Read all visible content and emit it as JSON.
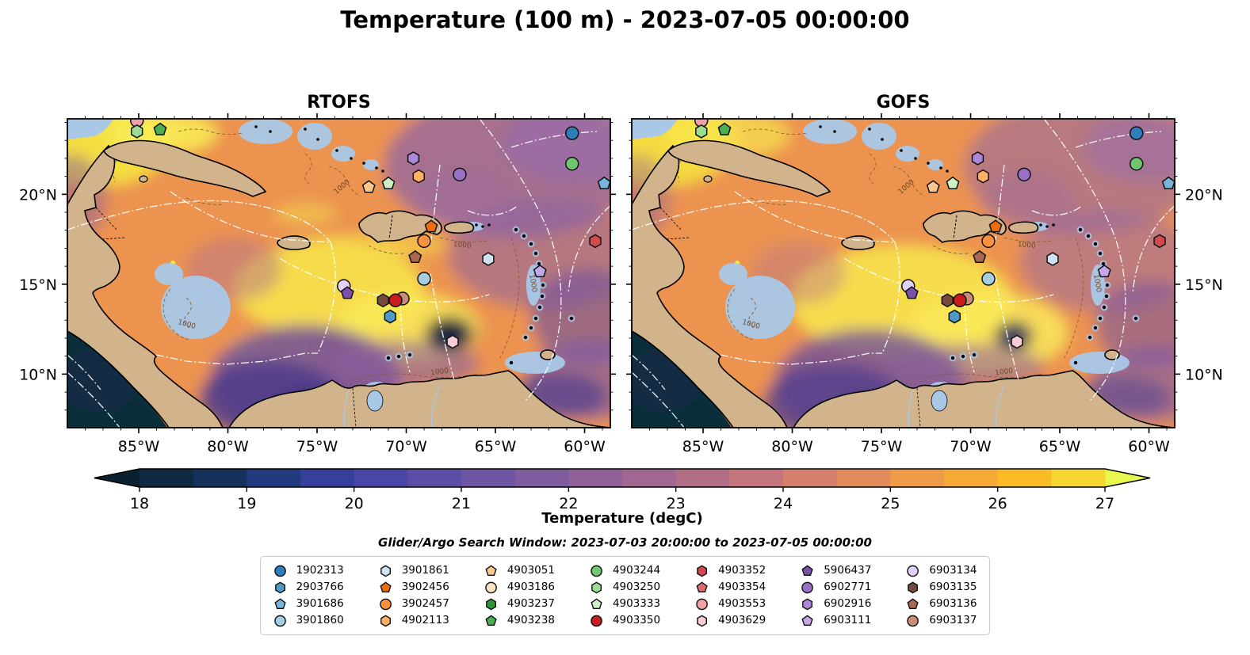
{
  "figure": {
    "title": "Temperature (100 m) - 2023-07-05 00:00:00",
    "subtitle": "Glider/Argo Search Window: 2023-07-03 20:00:00 to 2023-07-05 00:00:00"
  },
  "chart_data": {
    "type": "heatmap",
    "title": "Temperature (100 m) - 2023-07-05 00:00:00",
    "panels": [
      {
        "title": "RTOFS",
        "show_left_labels": true,
        "show_right_labels": false
      },
      {
        "title": "GOFS",
        "show_left_labels": false,
        "show_right_labels": true
      }
    ],
    "extent": {
      "lon_w": [
        89.0,
        58.5
      ],
      "lat_n": [
        7.0,
        24.2
      ]
    },
    "lon_ticks": {
      "major_deg_w": [
        85,
        80,
        75,
        70,
        65,
        60
      ],
      "labels": [
        "85°W",
        "80°W",
        "75°W",
        "70°W",
        "65°W",
        "60°W"
      ]
    },
    "lat_ticks": {
      "major_deg_n": [
        20,
        15,
        10
      ],
      "labels": [
        "20°N",
        "15°N",
        "10°N"
      ]
    },
    "colorbar": {
      "label": "Temperature (degC)",
      "min": 18,
      "max": 27,
      "step": 0.5,
      "tick_labels": [
        "18",
        "19",
        "20",
        "21",
        "22",
        "23",
        "24",
        "25",
        "26",
        "27"
      ],
      "segment_colors": [
        "#0e2a40",
        "#16315c",
        "#21397e",
        "#35409c",
        "#4946a7",
        "#5c4ea6",
        "#6e55a3",
        "#7f5b9f",
        "#906199",
        "#a16791",
        "#b36e87",
        "#c4767c",
        "#d4806d",
        "#e28b5b",
        "#ee9a47",
        "#f6aa33",
        "#fbbb24",
        "#f8d631"
      ],
      "under_color": "#0a222f",
      "over_color": "#e9f84e"
    },
    "contour_label": "1000",
    "map_colors": {
      "land": "#d2b48c",
      "shallow_water": "#a9c8e8",
      "coastline": "#000000",
      "boundary_lines": "#ffffff",
      "isobath": "#7d5a30"
    },
    "floats": [
      {
        "id": "1902313",
        "shape": "circle",
        "color": "#2e7ebc"
      },
      {
        "id": "2903766",
        "shape": "hexagon",
        "color": "#4e9bc8"
      },
      {
        "id": "3901686",
        "shape": "pentagon",
        "color": "#77b5da"
      },
      {
        "id": "3901860",
        "shape": "circle",
        "color": "#a6cee3"
      },
      {
        "id": "3901861",
        "shape": "hexagon",
        "color": "#d0e1f2"
      },
      {
        "id": "3902456",
        "shape": "pentagon",
        "color": "#ed6c0c"
      },
      {
        "id": "3902457",
        "shape": "circle",
        "color": "#fd9140"
      },
      {
        "id": "4902113",
        "shape": "hexagon",
        "color": "#fdb164"
      },
      {
        "id": "4903051",
        "shape": "pentagon",
        "color": "#fdc88e"
      },
      {
        "id": "4903186",
        "shape": "circle",
        "color": "#fde2c0"
      },
      {
        "id": "4903237",
        "shape": "hexagon",
        "color": "#2f9636"
      },
      {
        "id": "4903238",
        "shape": "pentagon",
        "color": "#4bae50"
      },
      {
        "id": "4903244",
        "shape": "circle",
        "color": "#70c86e"
      },
      {
        "id": "4903250",
        "shape": "hexagon",
        "color": "#9cdd95"
      },
      {
        "id": "4903333",
        "shape": "pentagon",
        "color": "#cdf0c5"
      },
      {
        "id": "4903350",
        "shape": "circle",
        "color": "#ca1c1f"
      },
      {
        "id": "4903352",
        "shape": "hexagon",
        "color": "#d04a50"
      },
      {
        "id": "4903354",
        "shape": "pentagon",
        "color": "#e0696f"
      },
      {
        "id": "4903553",
        "shape": "circle",
        "color": "#efa0a8"
      },
      {
        "id": "4903629",
        "shape": "hexagon",
        "color": "#f8ccd4"
      },
      {
        "id": "5906437",
        "shape": "pentagon",
        "color": "#7b51a8"
      },
      {
        "id": "6902771",
        "shape": "circle",
        "color": "#9a70c7"
      },
      {
        "id": "6902916",
        "shape": "hexagon",
        "color": "#ad87d9"
      },
      {
        "id": "6903111",
        "shape": "pentagon",
        "color": "#c4a6e9"
      },
      {
        "id": "6903134",
        "shape": "circle",
        "color": "#e2d1f6"
      },
      {
        "id": "6903135",
        "shape": "hexagon",
        "color": "#774a3c"
      },
      {
        "id": "6903136",
        "shape": "pentagon",
        "color": "#a76951"
      },
      {
        "id": "6903137",
        "shape": "circle",
        "color": "#c98e7b"
      }
    ],
    "observations": [
      {
        "id": "4903553",
        "lon_w": 85.1,
        "lat_n": 24.1
      },
      {
        "id": "4903250",
        "lon_w": 85.1,
        "lat_n": 23.5
      },
      {
        "id": "4903238",
        "lon_w": 83.8,
        "lat_n": 23.6
      },
      {
        "id": "1902313",
        "lon_w": 60.7,
        "lat_n": 23.4
      },
      {
        "id": "4903244",
        "lon_w": 60.7,
        "lat_n": 21.7
      },
      {
        "id": "3901686",
        "lon_w": 58.9,
        "lat_n": 20.6
      },
      {
        "id": "6902916",
        "lon_w": 69.6,
        "lat_n": 22.0
      },
      {
        "id": "6902771",
        "lon_w": 67.0,
        "lat_n": 21.1
      },
      {
        "id": "4902113",
        "lon_w": 69.3,
        "lat_n": 21.0
      },
      {
        "id": "4903333",
        "lon_w": 71.0,
        "lat_n": 20.6
      },
      {
        "id": "4903051",
        "lon_w": 72.1,
        "lat_n": 20.4
      },
      {
        "id": "3902456",
        "lon_w": 68.6,
        "lat_n": 18.2
      },
      {
        "id": "4903352",
        "lon_w": 59.4,
        "lat_n": 17.4
      },
      {
        "id": "3902457",
        "lon_w": 69.0,
        "lat_n": 17.4
      },
      {
        "id": "6903136",
        "lon_w": 69.5,
        "lat_n": 16.5
      },
      {
        "id": "3901861",
        "lon_w": 65.4,
        "lat_n": 16.4
      },
      {
        "id": "6903111",
        "lon_w": 62.5,
        "lat_n": 15.7
      },
      {
        "id": "3901860",
        "lon_w": 69.0,
        "lat_n": 15.3
      },
      {
        "id": "6903134",
        "lon_w": 73.5,
        "lat_n": 14.9
      },
      {
        "id": "5906437",
        "lon_w": 73.3,
        "lat_n": 14.5
      },
      {
        "id": "6903135",
        "lon_w": 71.3,
        "lat_n": 14.1
      },
      {
        "id": "6903137",
        "lon_w": 70.2,
        "lat_n": 14.2
      },
      {
        "id": "4903350",
        "lon_w": 70.6,
        "lat_n": 14.1
      },
      {
        "id": "2903766",
        "lon_w": 70.9,
        "lat_n": 13.2
      },
      {
        "id": "4903629",
        "lon_w": 67.4,
        "lat_n": 11.8
      }
    ]
  }
}
